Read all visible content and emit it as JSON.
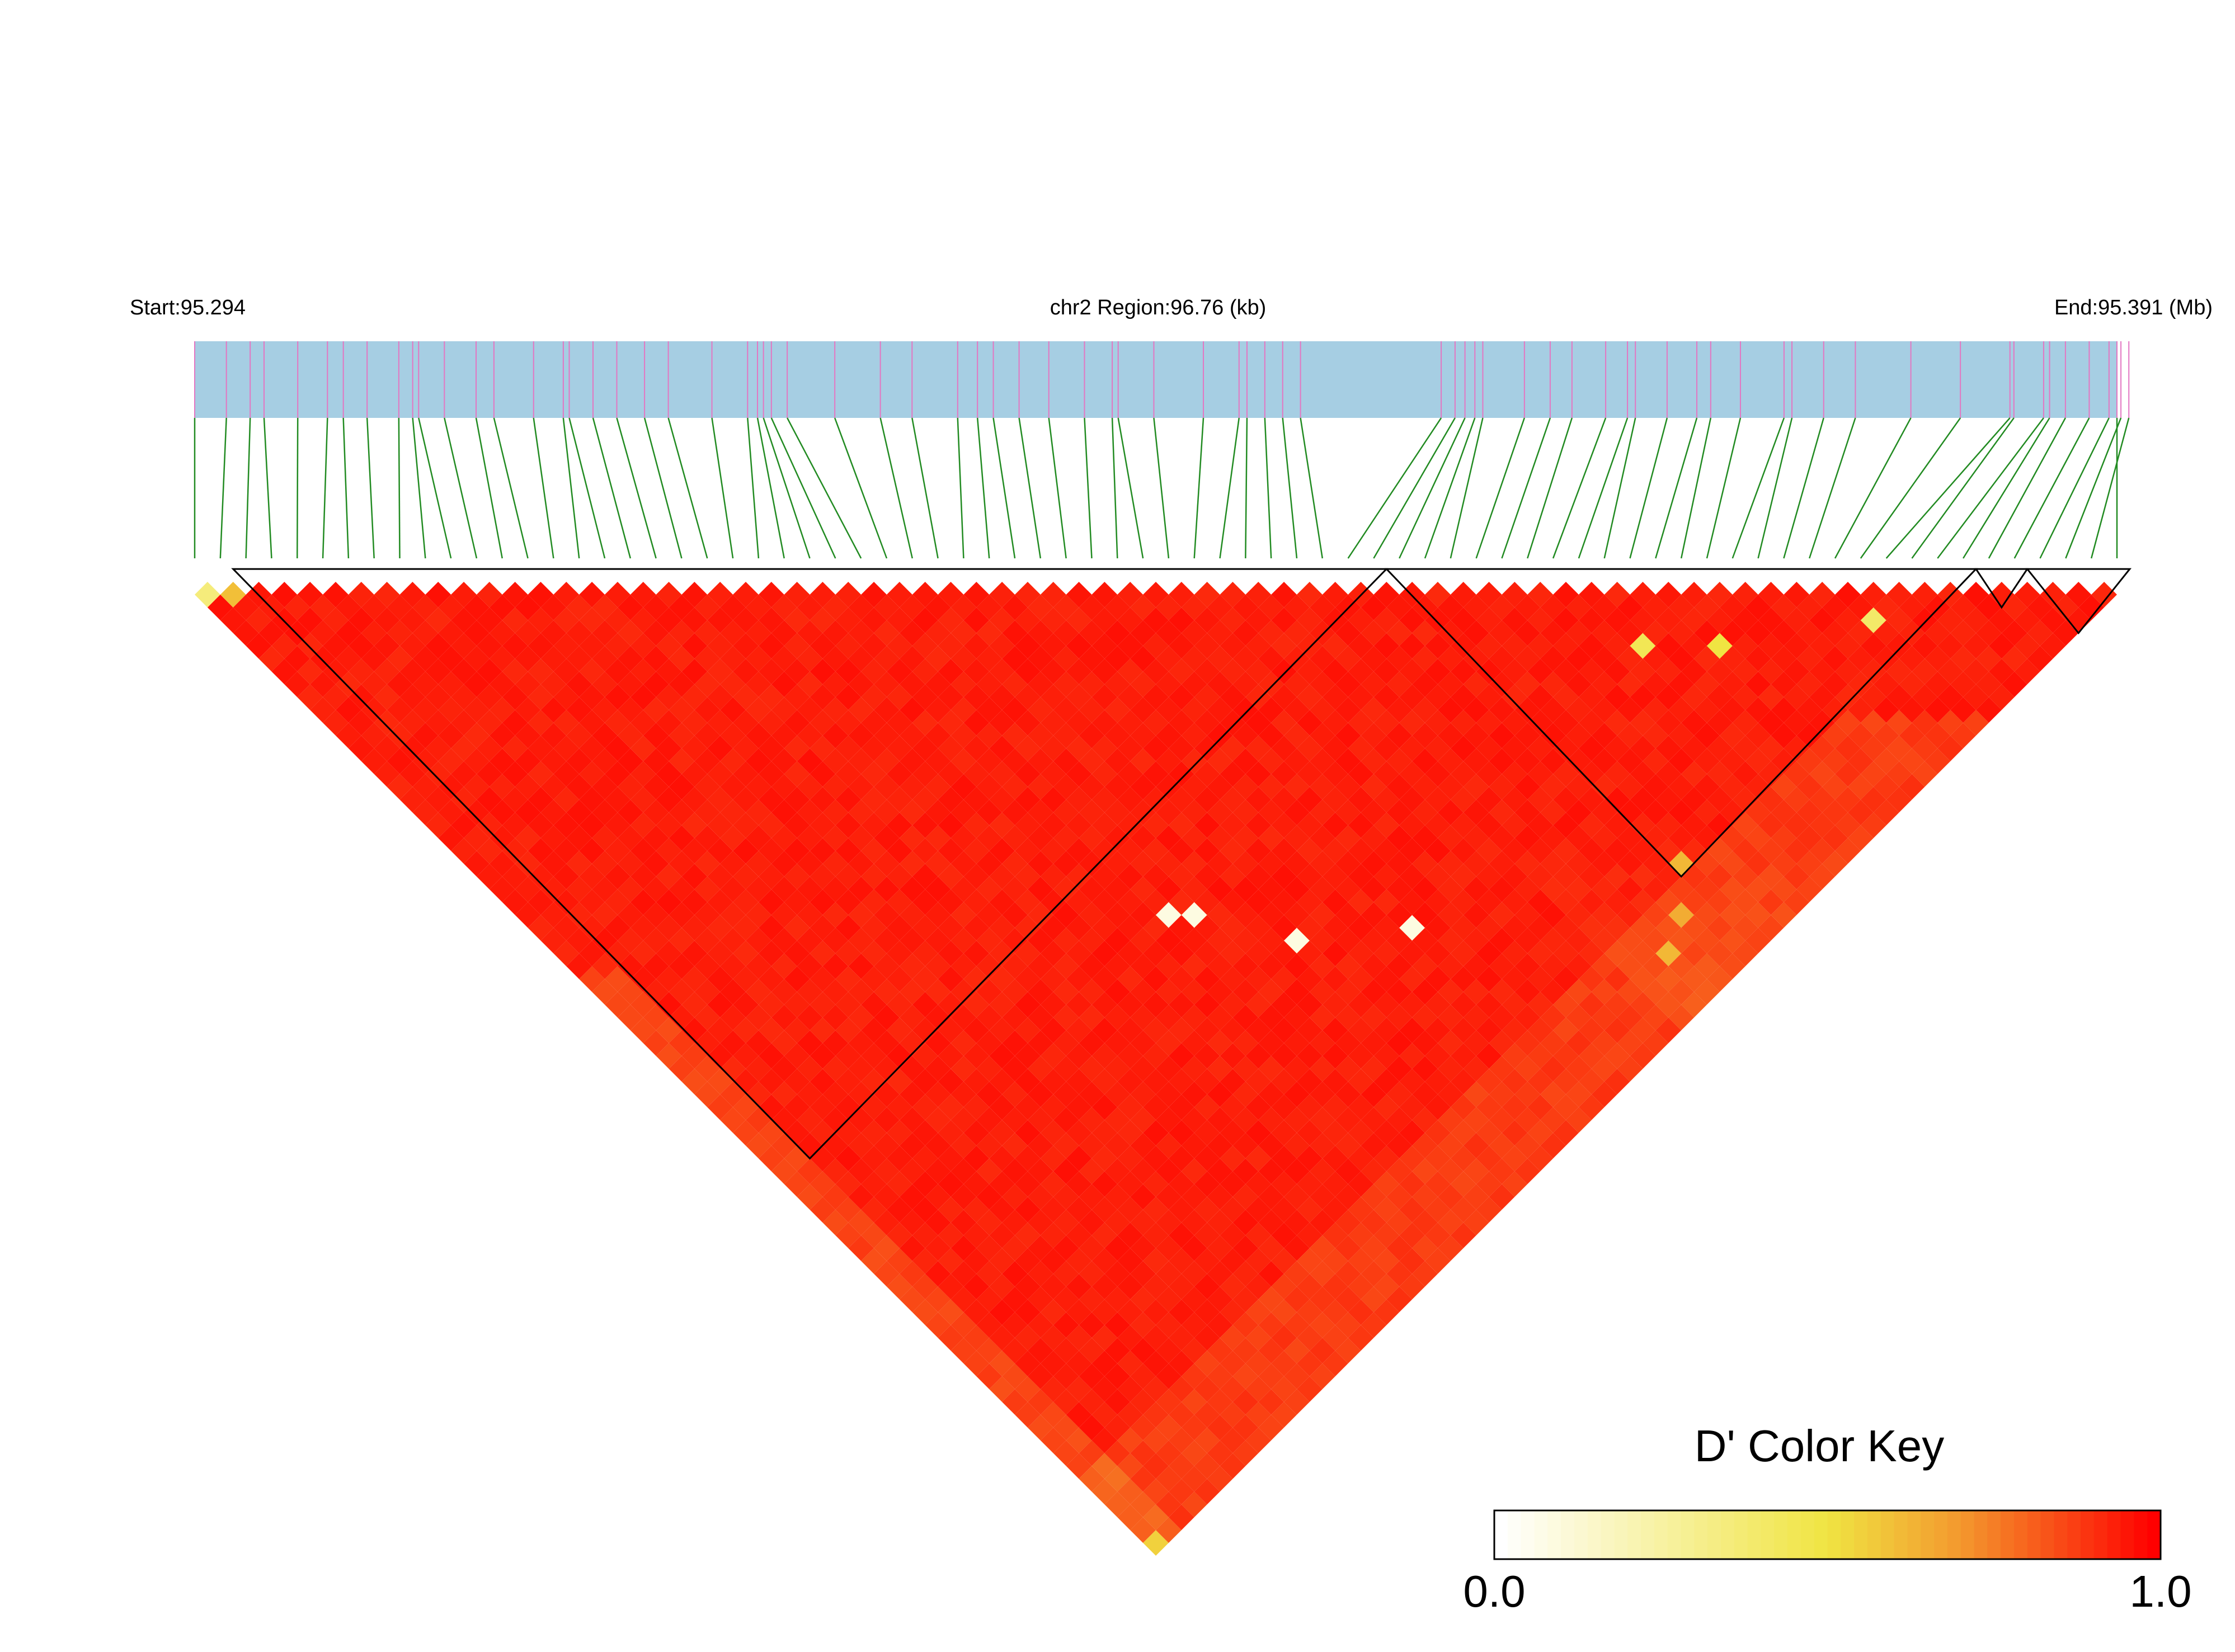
{
  "header": {
    "start_label": "Start:95.294",
    "region_label": "chr2 Region:96.76 (kb)",
    "end_label": "End:95.391 (Mb)"
  },
  "chart_data": {
    "type": "heatmap",
    "title": "",
    "chromosome": "chr2",
    "region_start_mb": 95.294,
    "region_end_mb": 95.391,
    "region_size_kb": 96.76,
    "metric": "D'",
    "snp_count": 76,
    "snp_positions_mb": [
      95.294,
      95.2956,
      95.2968,
      95.2975,
      95.2992,
      95.3007,
      95.3015,
      95.3027,
      95.3043,
      95.305,
      95.3053,
      95.3066,
      95.3082,
      95.3091,
      95.3111,
      95.3126,
      95.3129,
      95.3141,
      95.3153,
      95.3167,
      95.3179,
      95.3201,
      95.3219,
      95.3224,
      95.3227,
      95.3231,
      95.3239,
      95.3263,
      95.3286,
      95.3302,
      95.3325,
      95.3335,
      95.3343,
      95.3356,
      95.3371,
      95.3389,
      95.3403,
      95.3406,
      95.3424,
      95.3449,
      95.3467,
      95.3471,
      95.348,
      95.3489,
      95.3498,
      95.3569,
      95.3576,
      95.3581,
      95.3586,
      95.359,
      95.3611,
      95.3624,
      95.3635,
      95.3652,
      95.3663,
      95.3667,
      95.3683,
      95.3698,
      95.3705,
      95.372,
      95.3742,
      95.3746,
      95.3762,
      95.3778,
      95.3806,
      95.3831,
      95.3856,
      95.3858,
      95.3873,
      95.3876,
      95.3884,
      95.3896,
      95.3906,
      95.3912,
      95.3916,
      95.391
    ],
    "ld_blocks": [
      {
        "first_snp": 3,
        "last_snp": 47
      },
      {
        "first_snp": 48,
        "last_snp": 70
      },
      {
        "first_snp": 71,
        "last_snp": 72
      },
      {
        "first_snp": 73,
        "last_snp": 76
      }
    ],
    "dprime_default": 0.97,
    "dprime_notable": [
      {
        "snp_i": 1,
        "snp_j": 2,
        "value": 0.35
      },
      {
        "snp_i": 2,
        "snp_j": 3,
        "value": 0.6
      },
      {
        "snp_i": 26,
        "snp_j": 52,
        "value": 0.08
      },
      {
        "snp_i": 27,
        "snp_j": 53,
        "value": 0.08
      },
      {
        "snp_i": 35,
        "snp_j": 62,
        "value": 0.08
      },
      {
        "snp_i": 30,
        "snp_j": 58,
        "value": 0.08
      },
      {
        "snp_i": 55,
        "snp_j": 60,
        "value": 0.45
      },
      {
        "snp_i": 58,
        "snp_j": 63,
        "value": 0.5
      },
      {
        "snp_i": 65,
        "snp_j": 68,
        "value": 0.4
      },
      {
        "snp_i": 48,
        "snp_j": 70,
        "value": 0.62
      },
      {
        "snp_i": 46,
        "snp_j": 72,
        "value": 0.65
      },
      {
        "snp_i": 44,
        "snp_j": 73,
        "value": 0.62
      },
      {
        "snp_i": 1,
        "snp_j": 76,
        "value": 0.55
      }
    ],
    "legend": {
      "title": "D' Color Key",
      "min_label": "0.0",
      "max_label": "1.0",
      "colors": [
        "#ffffff",
        "#f0e442",
        "#f39a2e",
        "#ff0000"
      ]
    },
    "colors": {
      "track_fill": "#a6cee3",
      "snp_tick": "#e377c2",
      "connector": "#228b22",
      "block_outline": "#000000"
    }
  }
}
